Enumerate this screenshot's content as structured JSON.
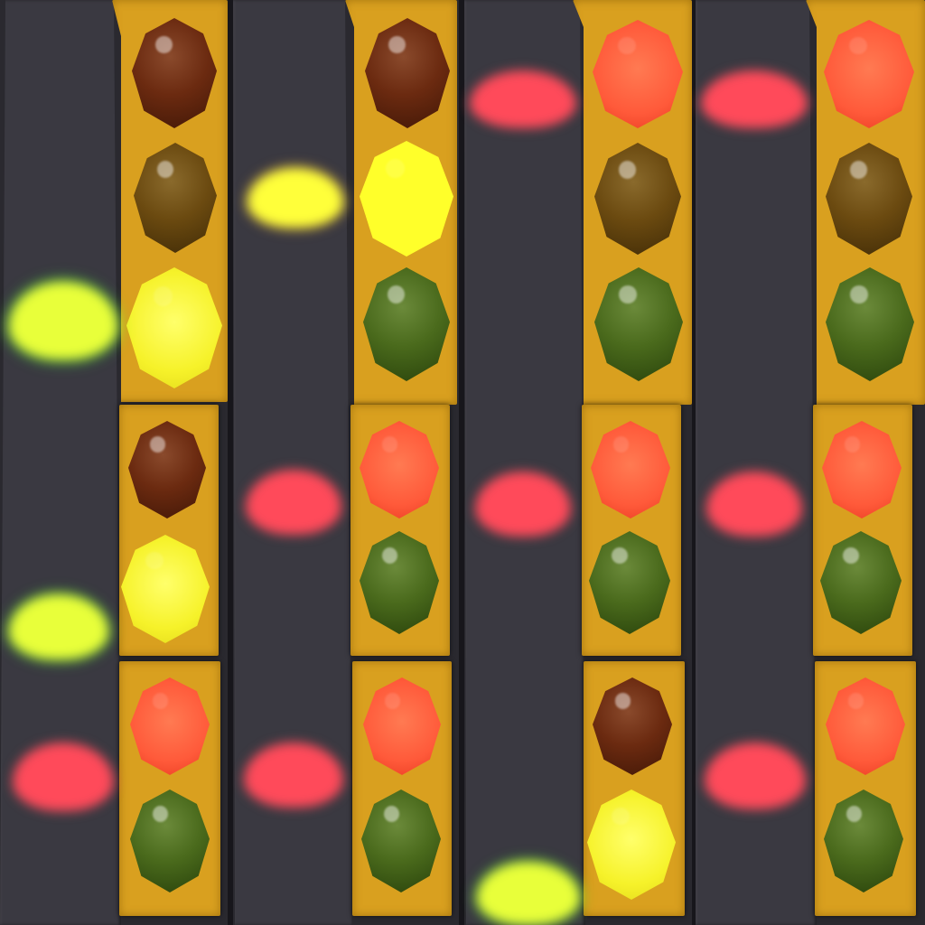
{
  "scene": {
    "description_colors": {
      "background": "#2a292f",
      "stripe": "#3a3941",
      "housing": "#d9a01f",
      "red_lit": "#ff5a3a",
      "yellow_lit": "#f6f22a",
      "green_glow": "#3aff3a"
    },
    "columns": [
      {
        "signals": [
          {
            "lamps": [
              "red-off",
              "yellow-off",
              "yellow-on"
            ]
          },
          {
            "lamps": [
              "red-off",
              "yellow-on"
            ]
          },
          {
            "lamps": [
              "red-on",
              "green-off"
            ]
          }
        ]
      },
      {
        "signals": [
          {
            "lamps": [
              "red-off",
              "yellow-on",
              "green-off"
            ]
          },
          {
            "lamps": [
              "red-on",
              "green-off"
            ]
          },
          {
            "lamps": [
              "red-on",
              "green-off"
            ]
          }
        ]
      },
      {
        "signals": [
          {
            "lamps": [
              "red-on",
              "yellow-off",
              "green-off"
            ]
          },
          {
            "lamps": [
              "red-on",
              "green-off"
            ]
          },
          {
            "lamps": [
              "red-off",
              "yellow-on"
            ]
          }
        ]
      },
      {
        "signals": [
          {
            "lamps": [
              "red-on",
              "yellow-off",
              "green-off"
            ]
          },
          {
            "lamps": [
              "red-on",
              "green-off"
            ]
          },
          {
            "lamps": [
              "red-on",
              "green-off"
            ]
          }
        ]
      }
    ]
  }
}
